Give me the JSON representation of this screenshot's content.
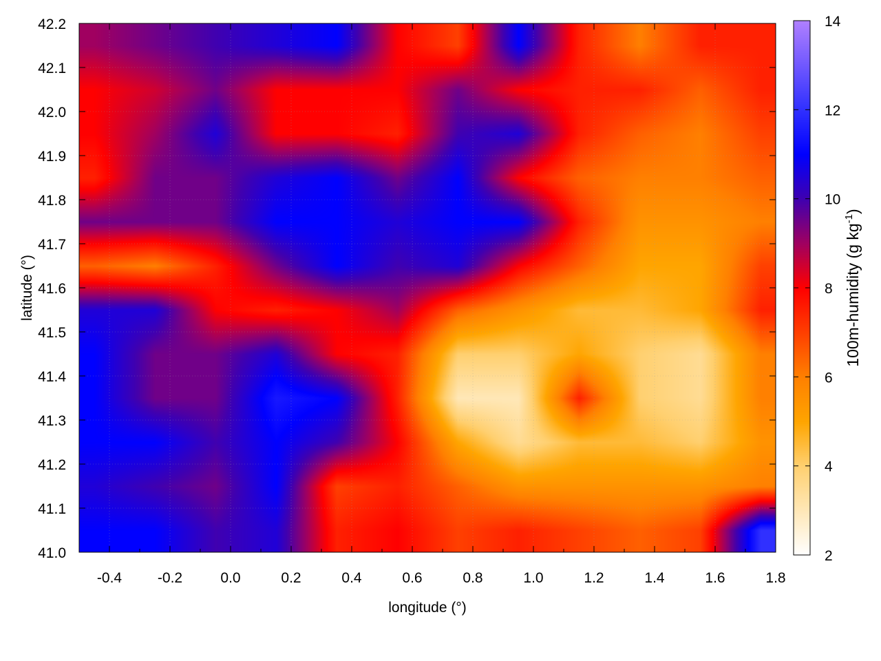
{
  "chart_data": {
    "type": "heatmap",
    "title": "",
    "xlabel": "longitude (°)",
    "ylabel": "latitude (°)",
    "colorbar_label": "100m-humidity (g kg",
    "colorbar_label_sup": "-1",
    "colorbar_label_end": ")",
    "xlim": [
      -0.5,
      1.8
    ],
    "ylim": [
      41.0,
      42.2
    ],
    "clim": [
      2,
      14
    ],
    "grid": true,
    "x_ticks": [
      "-0.4",
      "-0.2",
      "0.0",
      "0.2",
      "0.4",
      "0.6",
      "0.8",
      "1.0",
      "1.2",
      "1.4",
      "1.6",
      "1.8"
    ],
    "y_ticks": [
      "41.0",
      "41.1",
      "41.2",
      "41.3",
      "41.4",
      "41.5",
      "41.6",
      "41.7",
      "41.8",
      "41.9",
      "42.0",
      "42.1",
      "42.2"
    ],
    "colorbar_ticks": [
      "2",
      "4",
      "6",
      "8",
      "10",
      "12",
      "14"
    ],
    "colormap": [
      {
        "value": 2,
        "color": "#ffffff"
      },
      {
        "value": 4,
        "color": "#ffd070"
      },
      {
        "value": 5,
        "color": "#ffa500"
      },
      {
        "value": 6,
        "color": "#ff8000"
      },
      {
        "value": 7,
        "color": "#ff4000"
      },
      {
        "value": 8,
        "color": "#ff0000"
      },
      {
        "value": 9,
        "color": "#a00060"
      },
      {
        "value": 10,
        "color": "#4000b0"
      },
      {
        "value": 11,
        "color": "#0000ff"
      },
      {
        "value": 12,
        "color": "#3030ff"
      },
      {
        "value": 14,
        "color": "#b080ff"
      }
    ],
    "lon": [
      -0.45,
      -0.25,
      -0.05,
      0.15,
      0.35,
      0.55,
      0.75,
      0.95,
      1.15,
      1.35,
      1.55,
      1.75
    ],
    "lat": [
      42.15,
      42.05,
      41.95,
      41.85,
      41.75,
      41.65,
      41.55,
      41.45,
      41.35,
      41.25,
      41.15,
      41.05
    ],
    "values": [
      [
        9,
        9.5,
        10,
        10.5,
        11,
        8,
        7,
        11,
        7.5,
        6,
        7.5,
        7.5
      ],
      [
        8,
        8.5,
        9.5,
        8,
        8,
        8,
        9.5,
        8,
        7.5,
        7.5,
        6.5,
        7.5
      ],
      [
        8,
        9,
        10.5,
        8,
        8,
        7.5,
        10,
        10.5,
        7.5,
        6.5,
        6,
        7
      ],
      [
        7.5,
        9.5,
        9.5,
        10.5,
        11,
        9.5,
        11,
        8,
        6.5,
        6,
        6,
        6.5
      ],
      [
        9.5,
        9.5,
        9.5,
        11,
        11,
        10.5,
        11,
        11,
        7.5,
        5.5,
        5.5,
        6
      ],
      [
        6.5,
        6,
        7.5,
        9.5,
        11,
        10,
        10.5,
        8,
        6.5,
        5,
        5,
        7
      ],
      [
        10.5,
        10.5,
        8,
        7.5,
        8,
        9,
        6.5,
        5.5,
        4.5,
        4.5,
        5,
        7.5
      ],
      [
        11,
        9.5,
        9.5,
        10.5,
        8,
        7.5,
        4,
        4,
        5,
        4,
        3.5,
        6
      ],
      [
        11,
        9.5,
        9.5,
        11.5,
        11,
        7.5,
        3,
        3,
        7.5,
        4,
        3.5,
        6
      ],
      [
        11,
        11,
        10,
        11,
        10,
        8,
        5,
        3.5,
        4.5,
        4.5,
        4,
        5.5
      ],
      [
        10.5,
        10,
        9.5,
        11,
        7,
        7.5,
        6.5,
        5.5,
        5.5,
        5.5,
        5.5,
        6
      ],
      [
        11,
        11,
        10,
        10.5,
        7.5,
        8,
        7,
        7.5,
        7,
        6.5,
        7,
        12
      ]
    ]
  }
}
